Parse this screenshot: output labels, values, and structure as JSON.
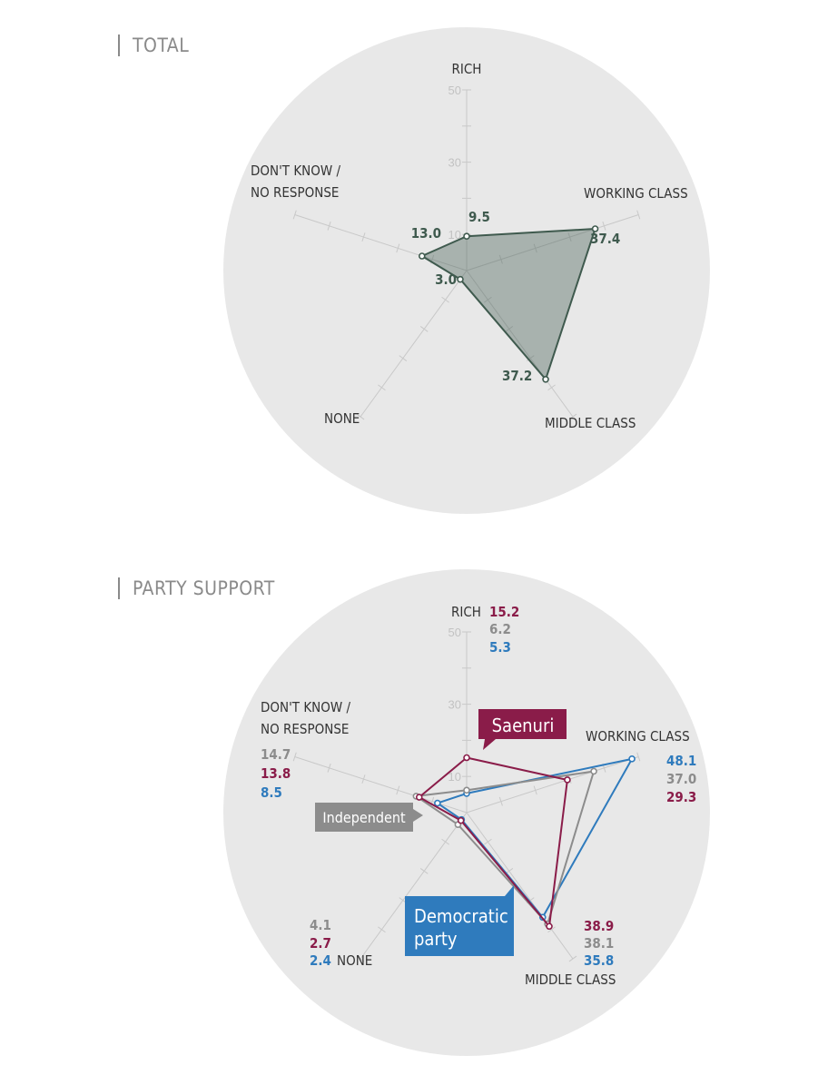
{
  "sections": {
    "total": "TOTAL",
    "party": "PARTY SUPPORT"
  },
  "colors": {
    "total": "#3f5a4e",
    "saenuri": "#8a1c49",
    "independent": "#8c8c8c",
    "democratic": "#2f7bbd",
    "circle": "#e8e8e8"
  },
  "chart_data": [
    {
      "type": "radar",
      "title": "TOTAL",
      "axes": [
        "RICH",
        "WORKING CLASS",
        "MIDDLE CLASS",
        "NONE",
        "DON'T KNOW / NO RESPONSE"
      ],
      "ticks": [
        10,
        30,
        50
      ],
      "range": [
        0,
        50
      ],
      "series": [
        {
          "name": "",
          "values": [
            9.5,
            37.4,
            37.2,
            3.0,
            13.0
          ],
          "labels": [
            "9.5",
            "37.4",
            "37.2",
            "3.0",
            "13.0"
          ]
        }
      ]
    },
    {
      "type": "radar",
      "title": "PARTY SUPPORT",
      "axes": [
        "RICH",
        "WORKING CLASS",
        "MIDDLE CLASS",
        "NONE",
        "DON'T KNOW / NO RESPONSE"
      ],
      "ticks": [
        10,
        30,
        50
      ],
      "range": [
        0,
        50
      ],
      "series": [
        {
          "name": "Saenuri",
          "values": [
            15.2,
            29.3,
            38.9,
            2.7,
            13.8
          ],
          "labels": [
            "15.2",
            "29.3",
            "38.9",
            "2.7",
            "13.8"
          ]
        },
        {
          "name": "Independent",
          "values": [
            6.2,
            37.0,
            38.1,
            4.1,
            14.7
          ],
          "labels": [
            "6.2",
            "37.0",
            "38.1",
            "4.1",
            "14.7"
          ]
        },
        {
          "name": "Democratic party",
          "values": [
            5.3,
            48.1,
            35.8,
            2.4,
            8.5
          ],
          "labels": [
            "5.3",
            "48.1",
            "35.8",
            "2.4",
            "8.5"
          ]
        }
      ]
    }
  ],
  "labels": {
    "rich": "RICH",
    "working": "WORKING CLASS",
    "middle": "MIDDLE CLASS",
    "none": "NONE",
    "dk1": "DON'T KNOW /",
    "dk2": "NO RESPONSE",
    "saenuri_tag": "Saenuri",
    "independent_tag": "Independent",
    "democratic_tag1": "Democratic",
    "democratic_tag2": "party"
  }
}
